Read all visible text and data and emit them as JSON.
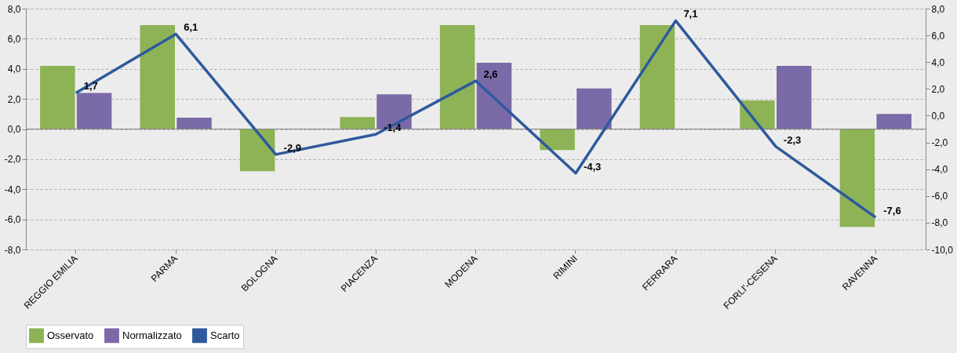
{
  "chart_data": {
    "type": "bar",
    "categories": [
      "REGGIO EMILIA",
      "PARMA",
      "BOLOGNA",
      "PIACENZA",
      "MODENA",
      "RIMINI",
      "FERRARA",
      "FORLI'-CESENA",
      "RAVENNA"
    ],
    "series": [
      {
        "name": "Osservato",
        "color": "#8db356",
        "values": [
          4.2,
          6.9,
          -2.8,
          0.8,
          6.9,
          -1.4,
          6.9,
          1.9,
          -6.5
        ]
      },
      {
        "name": "Normalizzato",
        "color": "#7b6aa8",
        "values": [
          2.4,
          0.75,
          null,
          2.3,
          4.4,
          2.7,
          null,
          4.2,
          1.0
        ]
      },
      {
        "name": "Scarto",
        "color": "#2e5a9c",
        "type": "line",
        "axis": "y2",
        "values": [
          1.7,
          6.1,
          -2.9,
          -1.4,
          2.6,
          -4.3,
          7.1,
          -2.3,
          -7.6
        ],
        "value_labels": [
          "1,7",
          "6,1",
          "-2,9",
          "-1,4",
          "2,6",
          "-4,3",
          "7,1",
          "-2,3",
          "-7,6"
        ]
      }
    ],
    "ylim": [
      -8,
      8
    ],
    "yticks": [
      {
        "value": -8,
        "label": "-8,0"
      },
      {
        "value": -6,
        "label": "-6,0"
      },
      {
        "value": -4,
        "label": "-4,0"
      },
      {
        "value": -2,
        "label": "-2,0"
      },
      {
        "value": 0,
        "label": "0,0"
      },
      {
        "value": 2,
        "label": "2,0"
      },
      {
        "value": 4,
        "label": "4,0"
      },
      {
        "value": 6,
        "label": "6,0"
      },
      {
        "value": 8,
        "label": "8,0"
      }
    ],
    "y2lim": [
      -10,
      8
    ],
    "y2ticks": [
      {
        "value": -10,
        "label": "-10,0"
      },
      {
        "value": -8,
        "label": "-8,0"
      },
      {
        "value": -6,
        "label": "-6,0"
      },
      {
        "value": -4,
        "label": "-4,0"
      },
      {
        "value": -2,
        "label": "-2,0"
      },
      {
        "value": 0,
        "label": "0,0"
      },
      {
        "value": 2,
        "label": "2,0"
      },
      {
        "value": 4,
        "label": "4,0"
      },
      {
        "value": 6,
        "label": "6,0"
      },
      {
        "value": 8,
        "label": "8,0"
      }
    ],
    "grid": "y",
    "legend": "bottom",
    "line_style": "solid",
    "marker": "none"
  }
}
